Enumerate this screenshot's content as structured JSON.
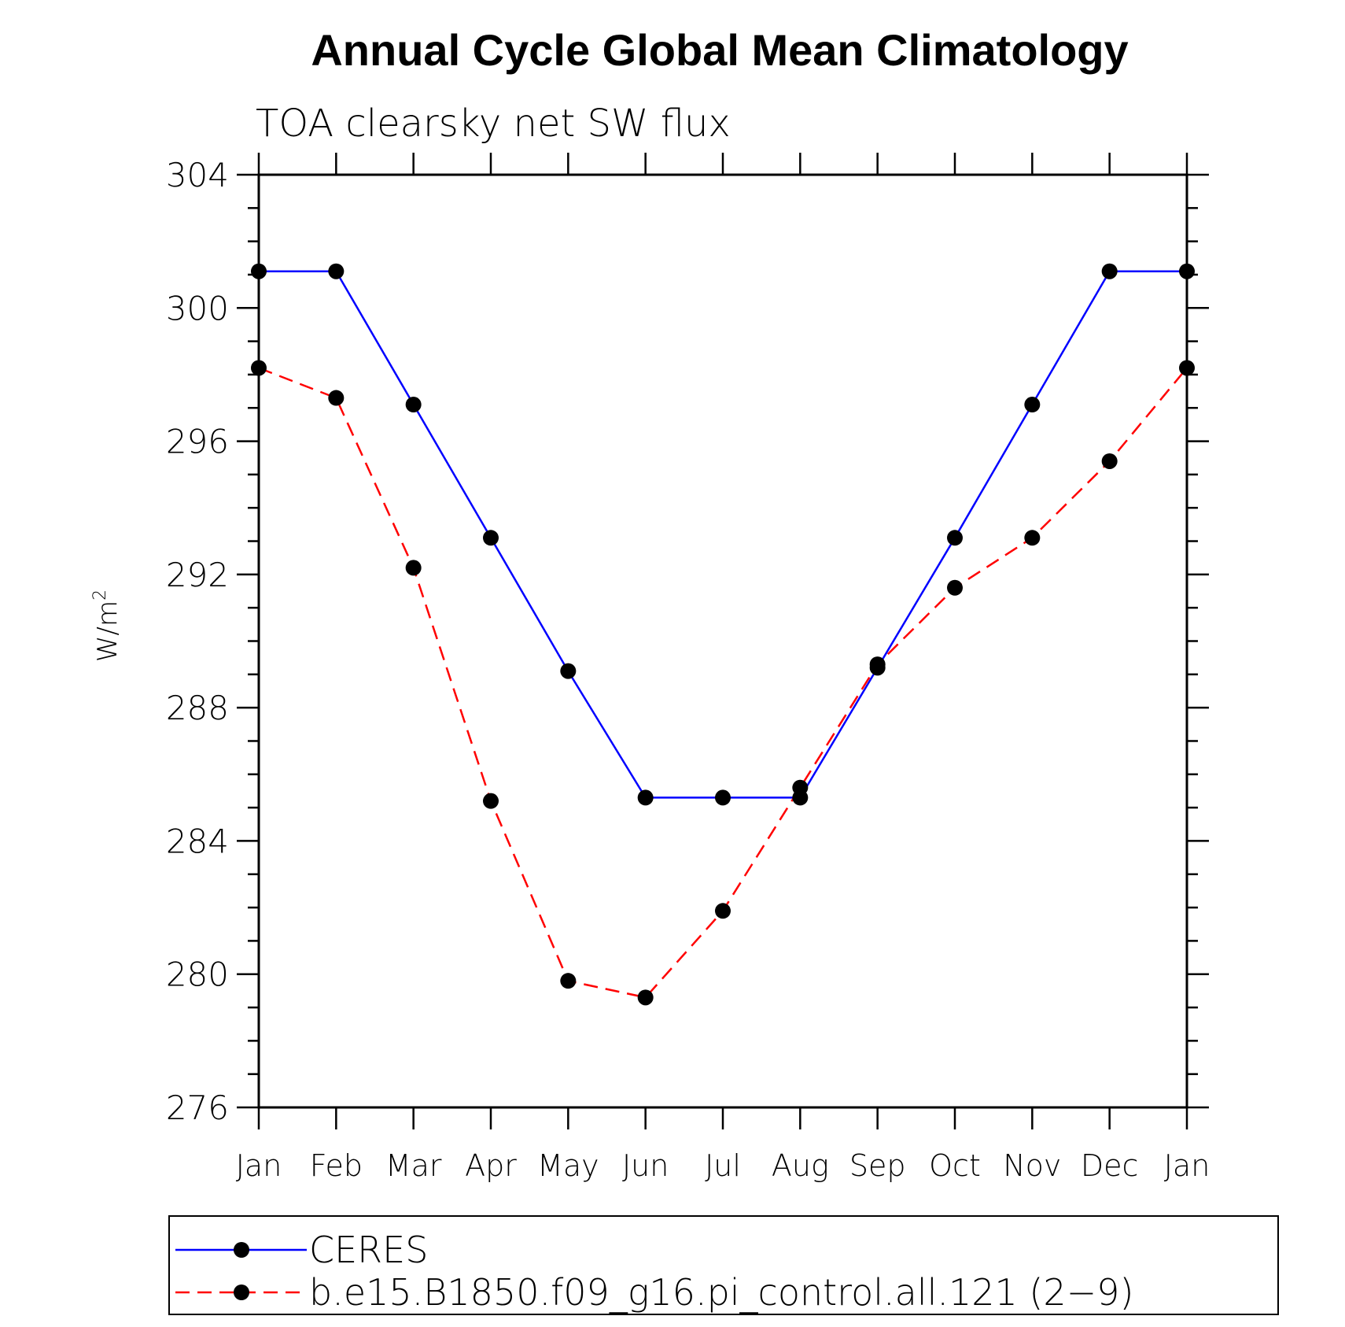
{
  "chart_data": {
    "type": "line",
    "title": "Annual Cycle Global Mean Climatology",
    "subtitle": "TOA clearsky net SW flux",
    "ylabel": "W/m",
    "ylabel_superscript": "2",
    "xlabel": "",
    "categories": [
      "Jan",
      "Feb",
      "Mar",
      "Apr",
      "May",
      "Jun",
      "Jul",
      "Aug",
      "Sep",
      "Oct",
      "Nov",
      "Dec",
      "Jan"
    ],
    "ylim": [
      276,
      304
    ],
    "yticks": [
      "276",
      "280",
      "284",
      "288",
      "292",
      "296",
      "300",
      "304"
    ],
    "ytick_values": [
      276,
      280,
      284,
      288,
      292,
      296,
      300,
      304
    ],
    "series": [
      {
        "name": "CERES",
        "color": "#0000ff",
        "style": "solid",
        "values": [
          301.1,
          301.1,
          297.1,
          293.1,
          289.1,
          285.3,
          285.3,
          285.3,
          289.2,
          293.1,
          297.1,
          301.1,
          301.1
        ]
      },
      {
        "name": "b.e15.B1850.f09_g16.pi_control.all.121 (2−9)",
        "color": "#ff0000",
        "style": "dashed",
        "values": [
          298.2,
          297.3,
          292.2,
          285.2,
          279.8,
          279.3,
          281.9,
          285.6,
          289.3,
          291.6,
          293.1,
          295.4,
          298.2
        ]
      }
    ],
    "legend_position": "bottom"
  }
}
